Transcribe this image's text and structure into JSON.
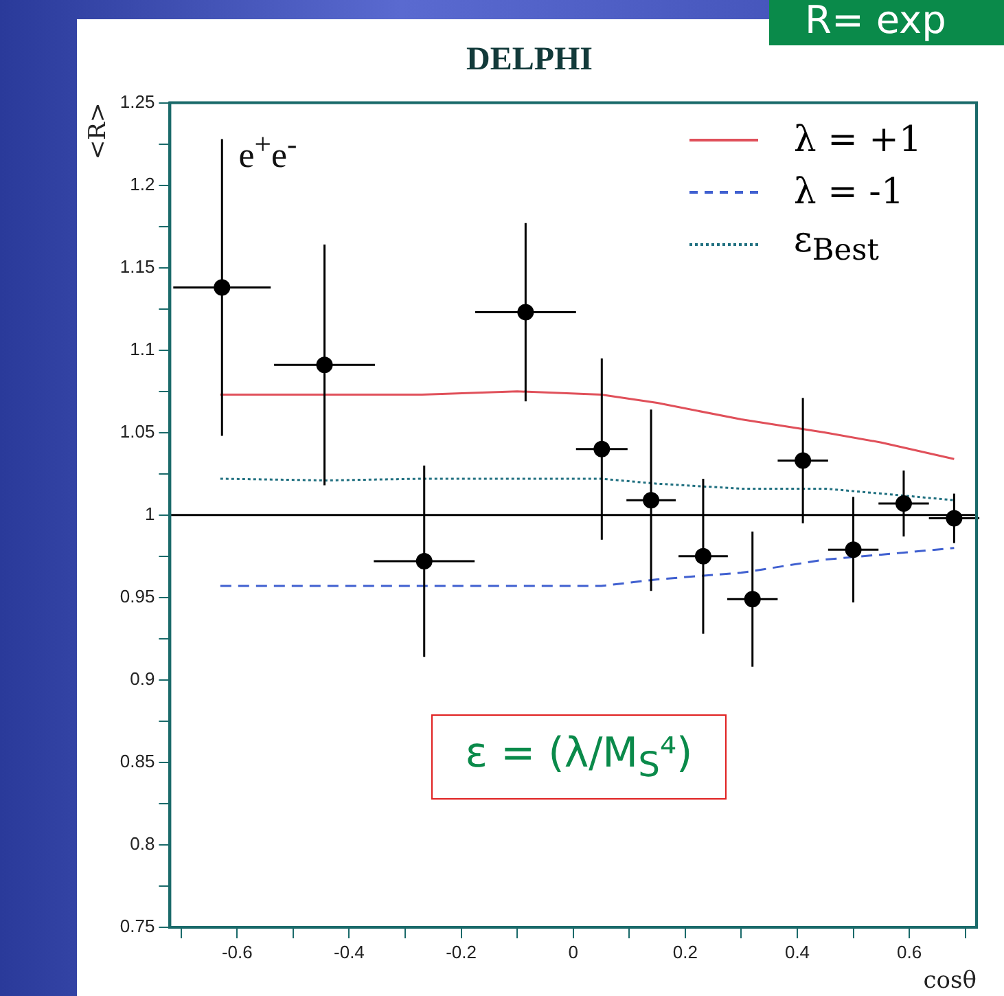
{
  "chart_data": {
    "type": "scatter",
    "title": "DELPHI",
    "xlabel": "cosθ",
    "ylabel": "<R>",
    "xlim": [
      -0.72,
      0.72
    ],
    "ylim": [
      0.75,
      1.25
    ],
    "xticks": [
      {
        "value": -0.7,
        "label": null
      },
      -0.6,
      {
        "value": -0.5,
        "label": null
      },
      -0.4,
      {
        "value": -0.3,
        "label": null
      },
      -0.2,
      {
        "value": -0.1,
        "label": null
      },
      0,
      {
        "value": 0.1,
        "label": null
      },
      0.2,
      {
        "value": 0.3,
        "label": null
      },
      0.4,
      {
        "value": 0.5,
        "label": null
      },
      0.6,
      {
        "value": 0.7,
        "label": null
      }
    ],
    "yticks": [
      0.75,
      {
        "value": 0.775,
        "label": null
      },
      0.8,
      {
        "value": 0.825,
        "label": null
      },
      0.85,
      {
        "value": 0.875,
        "label": null
      },
      0.9,
      {
        "value": 0.925,
        "label": null
      },
      0.95,
      {
        "value": 0.975,
        "label": null
      },
      1,
      {
        "value": 1.025,
        "label": null
      },
      1.05,
      {
        "value": 1.075,
        "label": null
      },
      1.1,
      {
        "value": 1.125,
        "label": null
      },
      1.15,
      {
        "value": 1.175,
        "label": null
      },
      1.2,
      {
        "value": 1.225,
        "label": null
      },
      1.25
    ],
    "grid": false,
    "legend": "top right",
    "marker": "circle",
    "ref_lines": [
      {
        "axis": "y",
        "value": 1,
        "color": "#000000"
      }
    ],
    "annotations": [
      "e$^{+}$e$^{-}$",
      "ε = (λ/M$_{S}$⁴)",
      "R= exp"
    ],
    "series": [
      {
        "type": "scatter",
        "color": "#000000",
        "x": [
          -0.627,
          -0.444,
          -0.266,
          -0.085,
          0.051,
          0.139,
          0.232,
          0.32,
          0.41,
          0.5,
          0.59,
          0.68
        ],
        "values": [
          1.138,
          1.091,
          0.972,
          1.123,
          1.04,
          1.009,
          0.975,
          0.949,
          1.033,
          0.979,
          1.007,
          0.998
        ],
        "errors": [
          0.09,
          0.073,
          0.058,
          0.054,
          0.055,
          0.055,
          0.047,
          0.041,
          0.038,
          0.032,
          0.02,
          0.015
        ],
        "xerrors": [
          0.087,
          0.09,
          0.09,
          0.09,
          0.046,
          0.044,
          0.044,
          0.045,
          0.045,
          0.045,
          0.045,
          0.045
        ]
      },
      {
        "type": "line",
        "name": "λ = +1",
        "color": "#e0505a",
        "line_style": "solid",
        "marker": "none",
        "x": [
          -0.63,
          -0.44,
          -0.27,
          -0.1,
          0.05,
          0.15,
          0.3,
          0.45,
          0.55,
          0.68
        ],
        "values": [
          1.073,
          1.073,
          1.073,
          1.075,
          1.073,
          1.068,
          1.058,
          1.05,
          1.044,
          1.034
        ]
      },
      {
        "type": "line",
        "name": "λ = -1",
        "color": "#4060d0",
        "line_style": "dashed",
        "marker": "none",
        "x": [
          -0.63,
          -0.44,
          -0.27,
          -0.1,
          0.05,
          0.15,
          0.3,
          0.45,
          0.55,
          0.68
        ],
        "values": [
          0.957,
          0.957,
          0.957,
          0.957,
          0.957,
          0.961,
          0.965,
          0.973,
          0.976,
          0.98
        ]
      },
      {
        "type": "line",
        "name": "ε$_{Best}$",
        "color": "#207080",
        "line_style": "dotted",
        "marker": "none",
        "x": [
          -0.63,
          -0.44,
          -0.27,
          -0.1,
          0.05,
          0.15,
          0.3,
          0.45,
          0.55,
          0.68
        ],
        "values": [
          1.022,
          1.021,
          1.022,
          1.022,
          1.022,
          1.019,
          1.016,
          1.016,
          1.013,
          1.009
        ]
      }
    ]
  }
}
